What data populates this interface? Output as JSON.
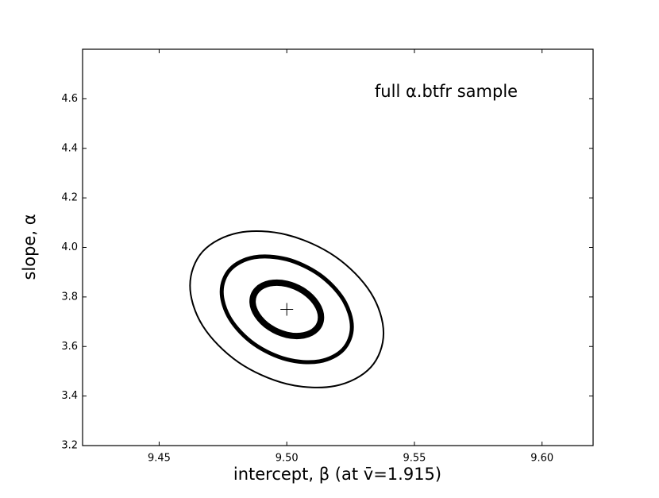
{
  "chart_data": {
    "type": "contour",
    "xlabel": "intercept, β  (at v̄=1.915)",
    "ylabel": "slope, α",
    "annotation": "full α.btfr sample",
    "xlim": [
      9.42,
      9.62
    ],
    "ylim": [
      3.2,
      4.8
    ],
    "xticks": [
      {
        "value": 9.45,
        "label": "9.45"
      },
      {
        "value": 9.5,
        "label": "9.50"
      },
      {
        "value": 9.55,
        "label": "9.55"
      },
      {
        "value": 9.6,
        "label": "9.60"
      }
    ],
    "yticks": [
      3.2,
      3.4,
      3.6,
      3.8,
      {
        "value": 4.0,
        "label": "4.0"
      },
      4.2,
      4.4,
      4.6
    ],
    "center": {
      "x": 9.5,
      "y": 3.75,
      "color": "#000000"
    },
    "series": [
      {
        "color": "#000000",
        "linewidth": 2,
        "x": [
          9.5379,
          9.5329,
          9.519,
          9.5,
          9.481,
          9.4671,
          9.4621,
          9.4671,
          9.481,
          9.5,
          9.519,
          9.5329
        ],
        "values": [
          3.654,
          3.516,
          3.441,
          3.449,
          3.537,
          3.683,
          3.846,
          3.984,
          4.059,
          4.051,
          3.963,
          3.817
        ]
      },
      {
        "color": "#000000",
        "linewidth": 5,
        "x": [
          9.5255,
          9.5221,
          9.5128,
          9.5,
          9.4872,
          9.4779,
          9.4745,
          9.4779,
          9.4872,
          9.5,
          9.5128,
          9.5221
        ],
        "values": [
          3.679,
          3.588,
          3.54,
          3.548,
          3.61,
          3.71,
          3.821,
          3.912,
          3.96,
          3.952,
          3.89,
          3.79
        ]
      },
      {
        "color": "#000000",
        "linewidth": 8,
        "x": [
          9.5134,
          9.5116,
          9.5067,
          9.5,
          9.4933,
          9.4884,
          9.4866,
          9.4884,
          9.4933,
          9.5,
          9.5067,
          9.5116
        ],
        "values": [
          3.718,
          3.671,
          3.645,
          3.647,
          3.677,
          3.727,
          3.782,
          3.829,
          3.855,
          3.853,
          3.823,
          3.773
        ]
      }
    ]
  }
}
